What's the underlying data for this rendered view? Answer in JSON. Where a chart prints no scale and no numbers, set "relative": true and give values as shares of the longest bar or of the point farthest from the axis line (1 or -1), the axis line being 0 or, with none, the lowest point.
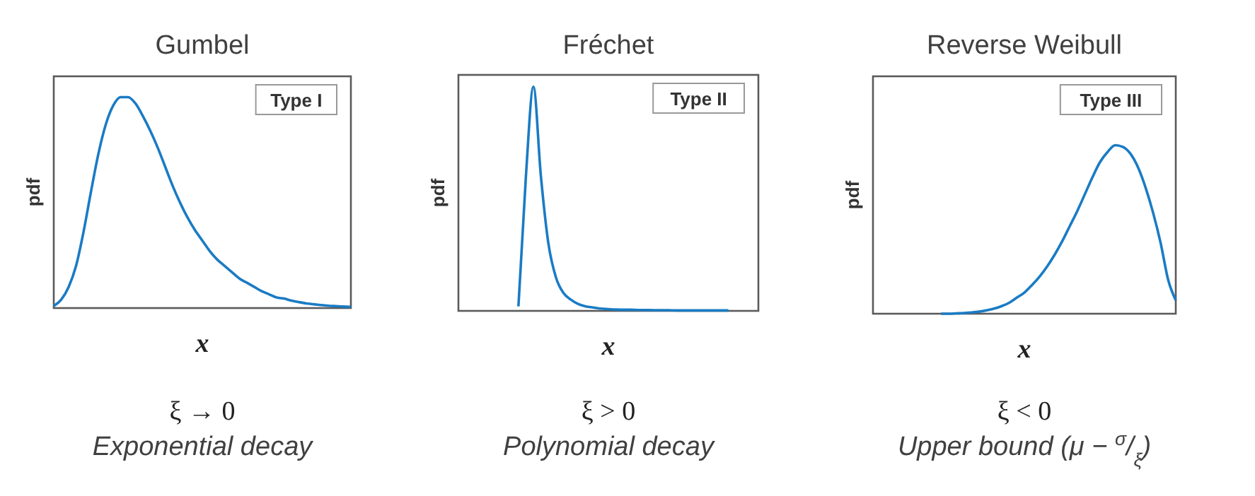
{
  "chart_data": [
    {
      "type": "line",
      "title": "Gumbel",
      "xlabel": "x",
      "ylabel": "pdf",
      "relative": true,
      "categories": [
        null,
        null,
        null,
        null,
        null,
        null,
        null,
        null,
        null,
        null,
        null,
        null,
        null,
        null,
        null,
        null,
        null,
        null,
        null,
        null,
        null,
        null,
        null,
        null,
        null,
        null,
        null,
        null,
        null,
        null,
        null,
        null,
        null,
        null,
        null,
        null,
        null,
        null,
        null,
        null,
        null
      ],
      "series": [
        {
          "color": "#1a7bc4",
          "values": [
            0.01,
            0.04,
            0.1,
            0.2,
            0.36,
            0.55,
            0.73,
            0.87,
            0.96,
            1.0,
            1.0,
            0.97,
            0.91,
            0.84,
            0.76,
            0.67,
            0.58,
            0.5,
            0.43,
            0.37,
            0.32,
            0.27,
            0.23,
            0.2,
            0.17,
            0.14,
            0.12,
            0.1,
            0.08,
            0.065,
            0.05,
            0.045,
            0.035,
            0.028,
            0.022,
            0.018,
            0.014,
            0.011,
            0.009,
            0.007,
            0.006
          ]
        }
      ],
      "annotations": [
        "Type I",
        "ξ → 0",
        "Exponential decay"
      ]
    },
    {
      "type": "line",
      "title": "Fréchet",
      "xlabel": "x",
      "ylabel": "pdf",
      "relative": true,
      "categories": [
        null,
        null,
        null,
        null,
        null,
        null,
        null,
        null,
        null,
        null,
        null,
        null,
        null,
        null,
        null,
        null,
        null,
        null,
        null,
        null,
        null,
        null,
        null,
        null,
        null,
        null,
        null,
        null,
        null,
        null,
        null,
        null,
        null,
        null,
        null,
        null,
        null,
        null,
        null,
        null,
        null
      ],
      "series": [
        {
          "color": "#1a7bc4",
          "values": [
            null,
            null,
            null,
            null,
            null,
            null,
            null,
            null,
            0.02,
            0.6,
            1.0,
            0.6,
            0.3,
            0.15,
            0.08,
            0.05,
            0.03,
            0.02,
            0.015,
            0.01,
            0.008,
            0.006,
            0.005,
            0.005,
            0.004,
            0.004,
            0.003,
            0.003,
            0.003,
            0.002,
            0.002,
            0.002,
            0.002,
            0.002,
            0.002,
            0.002,
            0.002,
            null,
            null,
            null,
            null
          ]
        }
      ],
      "annotations": [
        "Type II",
        "ξ > 0",
        "Polynomial decay"
      ]
    },
    {
      "type": "line",
      "title": "Reverse Weibull",
      "xlabel": "x",
      "ylabel": "pdf",
      "relative": true,
      "categories": [
        null,
        null,
        null,
        null,
        null,
        null,
        null,
        null,
        null,
        null,
        null,
        null,
        null,
        null,
        null,
        null,
        null,
        null,
        null,
        null,
        null,
        null,
        null,
        null,
        null,
        null,
        null,
        null,
        null,
        null,
        null,
        null,
        null,
        null,
        null,
        null,
        null,
        null,
        null,
        null,
        null
      ],
      "series": [
        {
          "color": "#1a7bc4",
          "values": [
            null,
            null,
            null,
            null,
            null,
            null,
            null,
            null,
            null,
            0.0,
            0.0,
            0.002,
            0.004,
            0.007,
            0.012,
            0.02,
            0.03,
            0.045,
            0.065,
            0.095,
            0.125,
            0.17,
            0.22,
            0.28,
            0.35,
            0.43,
            0.52,
            0.61,
            0.71,
            0.81,
            0.9,
            0.96,
            1.0,
            0.99,
            0.95,
            0.87,
            0.75,
            0.6,
            0.42,
            0.2,
            0.08
          ]
        }
      ],
      "annotations": [
        "Type III",
        "ξ < 0",
        "Upper bound (μ − $^{σ}$/$_{ξ}$)"
      ]
    }
  ]
}
